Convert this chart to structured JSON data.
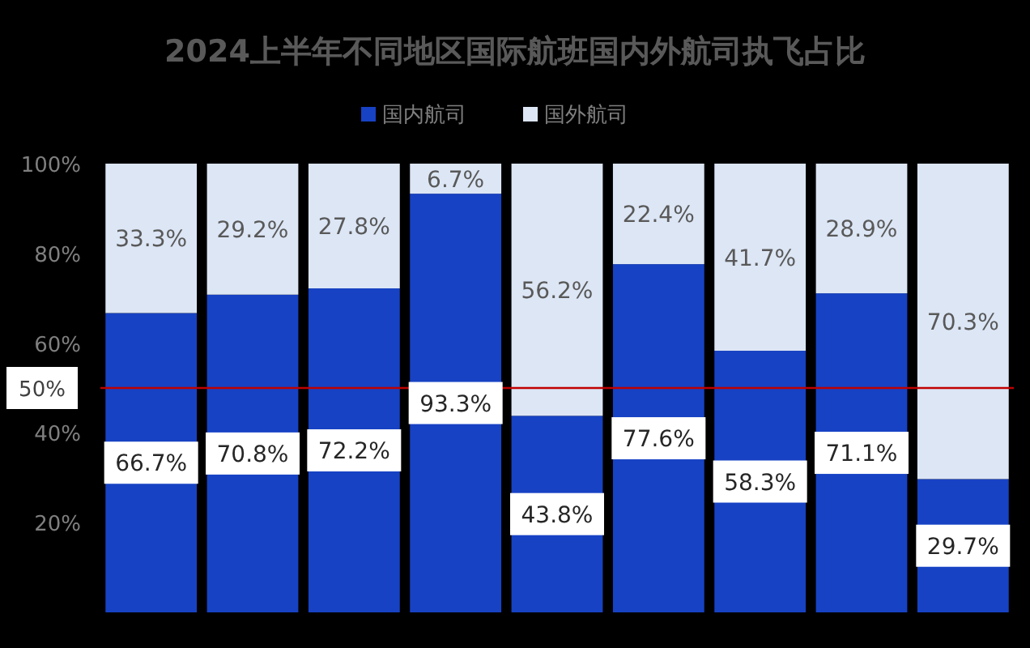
{
  "chart_data": {
    "type": "bar",
    "stacked": true,
    "title": "2024上半年不同地区国际航班国内外航司执飞占比",
    "categories": [
      null,
      null,
      null,
      null,
      null,
      null,
      null,
      null,
      null
    ],
    "series": [
      {
        "name": "国内航司",
        "color": "#1742c4",
        "values": [
          66.7,
          70.8,
          72.2,
          93.3,
          43.8,
          77.6,
          58.3,
          71.1,
          29.7
        ],
        "value_labels": [
          "66.7%",
          "70.8%",
          "72.2%",
          "93.3%",
          "43.8%",
          "77.6%",
          "58.3%",
          "71.1%",
          "29.7%"
        ]
      },
      {
        "name": "国外航司",
        "color": "#dce6f5",
        "values": [
          33.3,
          29.2,
          27.8,
          6.7,
          56.2,
          22.4,
          41.7,
          28.9,
          70.3
        ],
        "value_labels": [
          "33.3%",
          "29.2%",
          "27.8%",
          "6.7%",
          "56.2%",
          "22.4%",
          "41.7%",
          "28.9%",
          "70.3%"
        ]
      }
    ],
    "ylim": [
      0,
      100
    ],
    "yticks": [
      {
        "value": 20,
        "label": "20%"
      },
      {
        "value": 40,
        "label": "40%"
      },
      {
        "value": 60,
        "label": "60%"
      },
      {
        "value": 80,
        "label": "80%"
      },
      {
        "value": 100,
        "label": "100%"
      }
    ],
    "ref_lines": [
      {
        "axis": "y",
        "value": 50,
        "label": "50%",
        "color": "#c00000"
      }
    ],
    "legend": "top",
    "grid": false
  }
}
